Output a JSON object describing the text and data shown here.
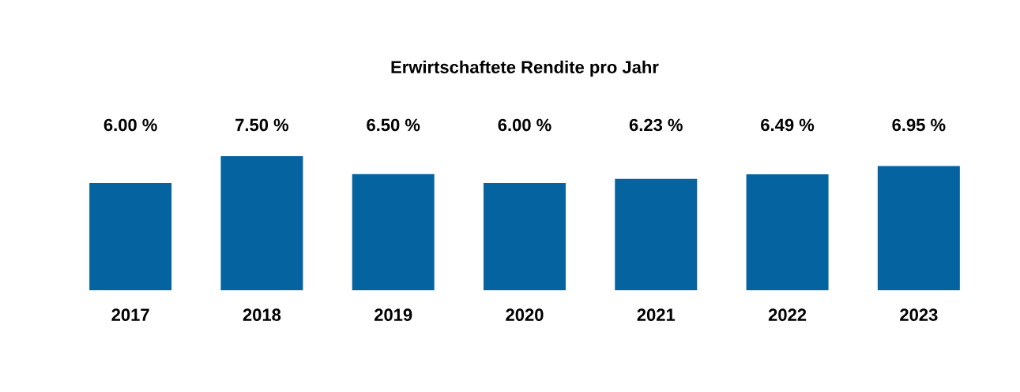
{
  "chart_data": {
    "type": "bar",
    "title": "Erwirtschaftete Rendite pro Jahr",
    "categories": [
      "2017",
      "2018",
      "2019",
      "2020",
      "2021",
      "2022",
      "2023"
    ],
    "values": [
      6.0,
      7.5,
      6.5,
      6.0,
      6.23,
      6.49,
      6.95
    ],
    "value_labels": [
      "6.00 %",
      "7.50 %",
      "6.50 %",
      "6.00 %",
      "6.23 %",
      "6.49 %",
      "6.95 %"
    ],
    "color": "#0563a0"
  }
}
